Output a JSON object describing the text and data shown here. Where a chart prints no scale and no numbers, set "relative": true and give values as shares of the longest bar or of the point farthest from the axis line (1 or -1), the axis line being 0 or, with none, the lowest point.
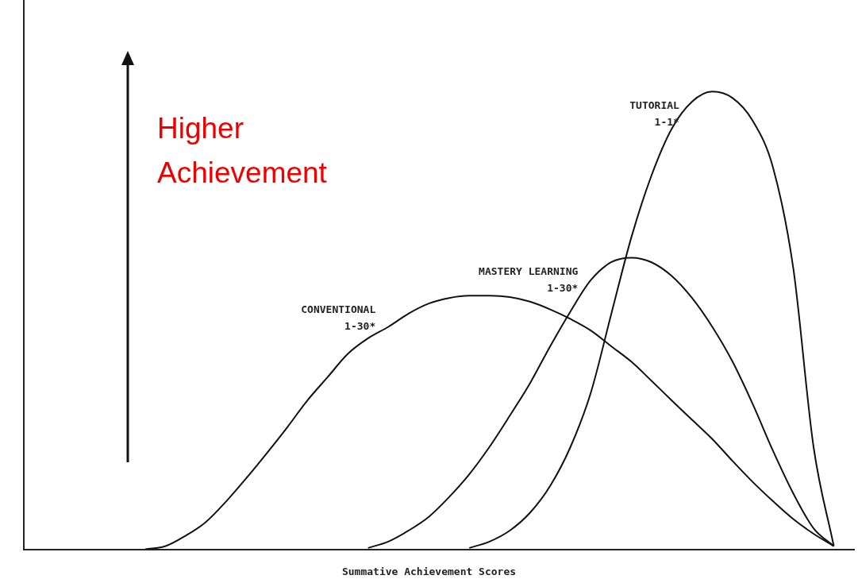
{
  "chart_data": {
    "type": "line",
    "relative": true,
    "xlabel": "Summative Achievement Scores",
    "annotations": [
      "Higher Achievement"
    ],
    "grid": false,
    "legend": false,
    "marker": "none",
    "line_style": "solid",
    "categories": [
      null,
      null,
      null,
      null,
      null,
      null,
      null,
      null,
      null,
      null,
      null,
      null,
      null,
      null,
      null,
      null,
      null,
      null,
      null,
      null,
      null,
      null,
      null,
      null,
      null,
      null,
      null,
      null,
      null,
      null,
      null,
      null,
      null,
      null,
      null,
      null,
      null,
      null,
      null,
      null,
      null,
      null
    ],
    "series": [
      {
        "name": "CONVENTIONAL\n1-30*",
        "color": "#111111",
        "values": [
          null,
          null,
          null,
          null,
          null,
          null,
          0,
          0.007,
          0.03,
          0.06,
          0.105,
          0.156,
          0.21,
          0.266,
          0.325,
          0.376,
          0.427,
          0.461,
          0.486,
          0.515,
          0.537,
          0.549,
          0.554,
          0.554,
          0.551,
          0.541,
          0.524,
          0.503,
          0.478,
          0.444,
          0.41,
          0.368,
          0.325,
          0.283,
          0.241,
          0.193,
          0.147,
          0.105,
          0.066,
          0.034,
          0.007,
          null
        ]
      },
      {
        "name": "MASTERY LEARNING\n1-30*",
        "color": "#111111",
        "values": [
          null,
          null,
          null,
          null,
          null,
          null,
          null,
          null,
          null,
          null,
          null,
          null,
          null,
          null,
          null,
          null,
          null,
          0.003,
          0.017,
          0.041,
          0.071,
          0.114,
          0.164,
          0.224,
          0.292,
          0.363,
          0.444,
          0.52,
          0.588,
          0.627,
          0.637,
          0.627,
          0.597,
          0.549,
          0.486,
          0.41,
          0.317,
          0.215,
          0.122,
          0.046,
          0.007,
          null
        ]
      },
      {
        "name": "TUTORIAL\n1-1*",
        "color": "#111111",
        "values": [
          null,
          null,
          null,
          null,
          null,
          null,
          null,
          null,
          null,
          null,
          null,
          null,
          null,
          null,
          null,
          null,
          null,
          null,
          null,
          null,
          null,
          null,
          0.003,
          0.017,
          0.041,
          0.08,
          0.139,
          0.224,
          0.342,
          0.512,
          0.681,
          0.817,
          0.919,
          0.978,
          1,
          0.986,
          0.936,
          0.834,
          0.614,
          0.224,
          0.007,
          null
        ]
      }
    ]
  }
}
